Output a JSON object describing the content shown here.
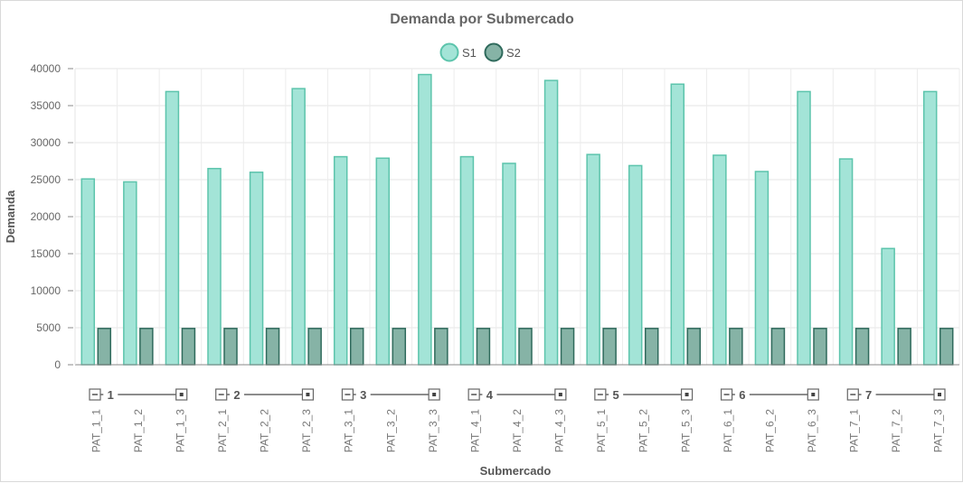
{
  "chart_data": {
    "type": "bar",
    "title": "Demanda por Submercado",
    "xlabel": "Submercado",
    "ylabel": "Demanda",
    "ylim": [
      0,
      40000
    ],
    "yticks": [
      0,
      5000,
      10000,
      15000,
      20000,
      25000,
      30000,
      35000,
      40000
    ],
    "grid": true,
    "legend_position": "top",
    "groups": [
      "1",
      "2",
      "3",
      "4",
      "5",
      "6",
      "7"
    ],
    "categories": [
      "PAT_1_1",
      "PAT_1_2",
      "PAT_1_3",
      "PAT_2_1",
      "PAT_2_2",
      "PAT_2_3",
      "PAT_3_1",
      "PAT_3_2",
      "PAT_3_3",
      "PAT_4_1",
      "PAT_4_2",
      "PAT_4_3",
      "PAT_5_1",
      "PAT_5_2",
      "PAT_5_3",
      "PAT_6_1",
      "PAT_6_2",
      "PAT_6_3",
      "PAT_7_1",
      "PAT_7_2",
      "PAT_7_3"
    ],
    "series": [
      {
        "name": "S1",
        "color": "#a3e4d7",
        "stroke": "#5cc4ac",
        "values": [
          25100,
          24700,
          36900,
          26500,
          26000,
          37300,
          28100,
          27900,
          39200,
          28100,
          27200,
          38400,
          28400,
          26900,
          37900,
          28300,
          26100,
          36900,
          27800,
          15700,
          36900
        ]
      },
      {
        "name": "S2",
        "color": "#86b3a6",
        "stroke": "#2f6a5c",
        "values": [
          4900,
          4900,
          4900,
          4900,
          4900,
          4900,
          4900,
          4900,
          4900,
          4900,
          4900,
          4900,
          4900,
          4900,
          4900,
          4900,
          4900,
          4900,
          4900,
          4900,
          4900
        ]
      }
    ]
  }
}
